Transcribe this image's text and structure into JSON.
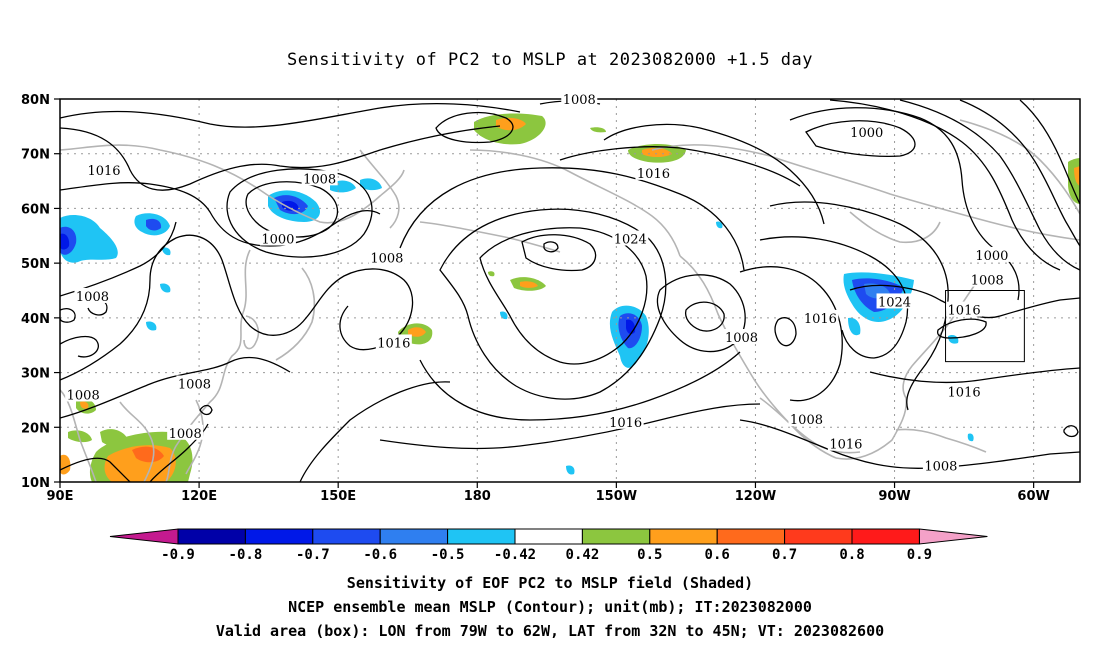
{
  "title": "Sensitivity of PC2 to MSLP at 2023082000 +1.5 day",
  "map": {
    "lon_range": [
      90,
      310
    ],
    "lat_range": [
      10,
      80
    ],
    "lat_ticks": [
      {
        "v": 80,
        "label": "80N"
      },
      {
        "v": 70,
        "label": "70N"
      },
      {
        "v": 60,
        "label": "60N"
      },
      {
        "v": 50,
        "label": "50N"
      },
      {
        "v": 40,
        "label": "40N"
      },
      {
        "v": 30,
        "label": "30N"
      },
      {
        "v": 20,
        "label": "20N"
      },
      {
        "v": 10,
        "label": "10N"
      }
    ],
    "lon_ticks": [
      {
        "v": 90,
        "label": "90E"
      },
      {
        "v": 120,
        "label": "120E"
      },
      {
        "v": 150,
        "label": "150E"
      },
      {
        "v": 180,
        "label": "180"
      },
      {
        "v": 210,
        "label": "150W"
      },
      {
        "v": 240,
        "label": "120W"
      },
      {
        "v": 270,
        "label": "90W"
      },
      {
        "v": 300,
        "label": "60W"
      }
    ],
    "valid_box": {
      "lon_min": 281,
      "lon_max": 298,
      "lat_min": 32,
      "lat_max": 45
    },
    "contour_labels": [
      {
        "text": "1008",
        "lon": 202,
        "lat": 80
      },
      {
        "text": "1000",
        "lon": 264,
        "lat": 74
      },
      {
        "text": "1016",
        "lon": 99.5,
        "lat": 67
      },
      {
        "text": "1016",
        "lon": 218,
        "lat": 66.5
      },
      {
        "text": "1008",
        "lon": 146,
        "lat": 65.5
      },
      {
        "text": "1000",
        "lon": 137,
        "lat": 54.5
      },
      {
        "text": "1024",
        "lon": 213,
        "lat": 54.5
      },
      {
        "text": "1000",
        "lon": 291,
        "lat": 51.5
      },
      {
        "text": "1008",
        "lon": 160.5,
        "lat": 51
      },
      {
        "text": "1008",
        "lon": 290,
        "lat": 47
      },
      {
        "text": "1008",
        "lon": 97,
        "lat": 44
      },
      {
        "text": "1024",
        "lon": 270,
        "lat": 43
      },
      {
        "text": "1016",
        "lon": 285,
        "lat": 41.5
      },
      {
        "text": "1016",
        "lon": 254,
        "lat": 40
      },
      {
        "text": "1016",
        "lon": 162,
        "lat": 35.5
      },
      {
        "text": "1008",
        "lon": 237,
        "lat": 36.5
      },
      {
        "text": "1008",
        "lon": 119,
        "lat": 28
      },
      {
        "text": "1008",
        "lon": 95,
        "lat": 26
      },
      {
        "text": "1016",
        "lon": 285,
        "lat": 26.5
      },
      {
        "text": "1016",
        "lon": 212,
        "lat": 21
      },
      {
        "text": "1008",
        "lon": 251,
        "lat": 21.5
      },
      {
        "text": "1016",
        "lon": 259.5,
        "lat": 17
      },
      {
        "text": "1008",
        "lon": 117,
        "lat": 19
      },
      {
        "text": "1008",
        "lon": 280,
        "lat": 13
      }
    ]
  },
  "colorbar": {
    "labels": [
      "-0.9",
      "-0.8",
      "-0.7",
      "-0.6",
      "-0.5",
      "-0.42",
      "0.42",
      "0.5",
      "0.6",
      "0.7",
      "0.8",
      "0.9"
    ],
    "colors": [
      "#0000a8",
      "#0018e8",
      "#1e4bf0",
      "#2f7ff0",
      "#1fc4f4",
      "#ffffff",
      "#8cc63f",
      "#ff9f1c",
      "#ff6a1c",
      "#ff3a1c",
      "#ff1a1a"
    ],
    "low_end_color": "#c41a8f",
    "high_end_color": "#f4a1c8"
  },
  "captions": {
    "line1": "Sensitivity of EOF PC2 to MSLP field (Shaded)",
    "line2": "NCEP ensemble mean MSLP (Contour); unit(mb); IT:2023082000",
    "line3": "Valid area (box): LON from 79W to 62W, LAT from 32N to 45N; VT: 2023082600"
  }
}
